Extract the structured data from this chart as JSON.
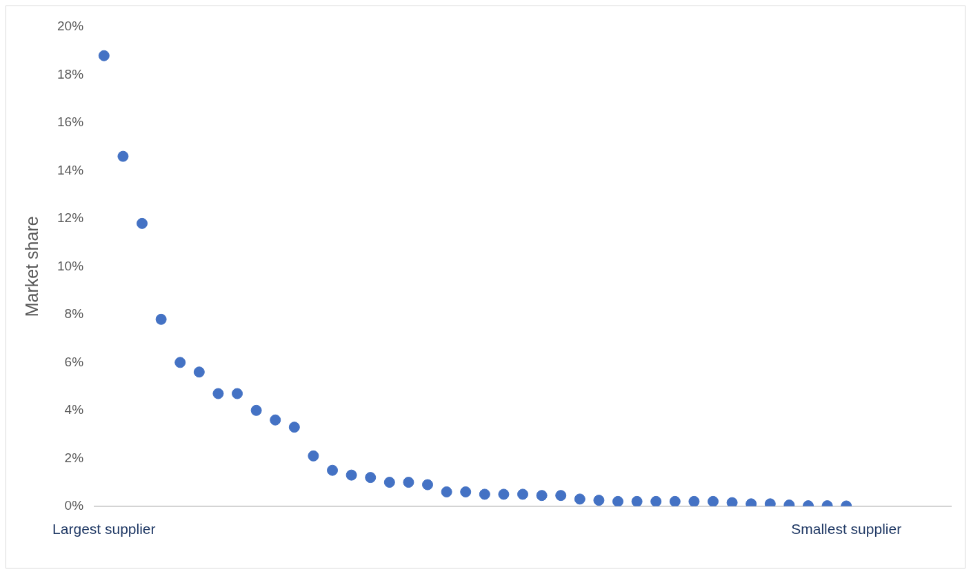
{
  "chart_data": {
    "type": "scatter",
    "ylabel": "Market share",
    "categories": [
      "Largest supplier",
      null,
      null,
      null,
      null,
      null,
      null,
      null,
      null,
      null,
      null,
      null,
      null,
      null,
      null,
      null,
      null,
      null,
      null,
      null,
      null,
      null,
      null,
      null,
      null,
      null,
      null,
      null,
      null,
      null,
      null,
      null,
      null,
      null,
      null,
      null,
      null,
      null,
      null,
      "Smallest supplier",
      null,
      null,
      null,
      null,
      null
    ],
    "values": [
      18.8,
      14.6,
      11.8,
      7.8,
      6.0,
      5.6,
      4.7,
      4.7,
      4.0,
      3.6,
      3.3,
      2.1,
      1.5,
      1.3,
      1.2,
      1.0,
      1.0,
      0.9,
      0.6,
      0.6,
      0.5,
      0.5,
      0.5,
      0.45,
      0.45,
      0.3,
      0.25,
      0.2,
      0.2,
      0.2,
      0.2,
      0.2,
      0.2,
      0.15,
      0.1,
      0.1,
      0.05,
      0.02,
      0.02,
      0.01,
      null,
      null,
      null,
      null,
      null
    ],
    "color": "#4472c4",
    "ylim": [
      0,
      20
    ],
    "yticks": [
      {
        "value": 0,
        "label": "0%"
      },
      {
        "value": 2,
        "label": "2%"
      },
      {
        "value": 4,
        "label": "4%"
      },
      {
        "value": 6,
        "label": "6%"
      },
      {
        "value": 8,
        "label": "8%"
      },
      {
        "value": 10,
        "label": "10%"
      },
      {
        "value": 12,
        "label": "12%"
      },
      {
        "value": 14,
        "label": "14%"
      },
      {
        "value": 16,
        "label": "16%"
      },
      {
        "value": 18,
        "label": "18%"
      },
      {
        "value": 20,
        "label": "20%"
      }
    ],
    "grid": false,
    "legend": false,
    "marker": "circle"
  }
}
